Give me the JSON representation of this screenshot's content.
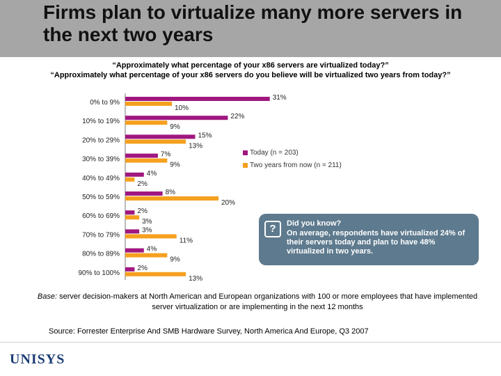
{
  "slide": {
    "title": "Firms plan to virtualize many more servers in the next two years",
    "question_1": "“Approximately what percentage of your x86 servers are virtualized today?”",
    "question_2": "“Approximately what percentage of your x86 servers do you believe will be virtualized two years from today?”",
    "callout_title": "Did you know?",
    "callout_body": "On average, respondents have virtualized 24% of their servers today and plan to have 48% virtualized in two years.",
    "base_note_prefix": "Base:",
    "base_note": "server decision-makers at North American and European organizations with 100 or more employees that have implemented server virtualization or are implementing in the next 12 months",
    "source": "Source: Forrester Enterprise And SMB Hardware Survey, North America And Europe, Q3 2007",
    "logo": "UNISYS"
  },
  "chart_data": {
    "type": "bar",
    "orientation": "horizontal",
    "categories": [
      "0% to 9%",
      "10% to 19%",
      "20% to 29%",
      "30% to 39%",
      "40% to 49%",
      "50% to 59%",
      "60% to 69%",
      "70% to 79%",
      "80% to 89%",
      "90% to 100%"
    ],
    "series": [
      {
        "name": "Today (n = 203)",
        "color": "#a0177f",
        "values": [
          31,
          22,
          15,
          7,
          4,
          8,
          2,
          3,
          4,
          2
        ],
        "labels": [
          "31%",
          "22%",
          "15%",
          "7%",
          "4%",
          "8%",
          "2%",
          "3%",
          "4%",
          "2%"
        ]
      },
      {
        "name": "Two years from now (n = 211)",
        "color": "#f5a01f",
        "values": [
          10,
          9,
          13,
          9,
          2,
          20,
          3,
          11,
          9,
          13
        ],
        "labels": [
          "10%",
          "9%",
          "13%",
          "9%",
          "2%",
          "20%",
          "3%",
          "11%",
          "9%",
          "13%"
        ]
      }
    ],
    "xlim": [
      0,
      33
    ],
    "grid": false,
    "legend": "right"
  }
}
